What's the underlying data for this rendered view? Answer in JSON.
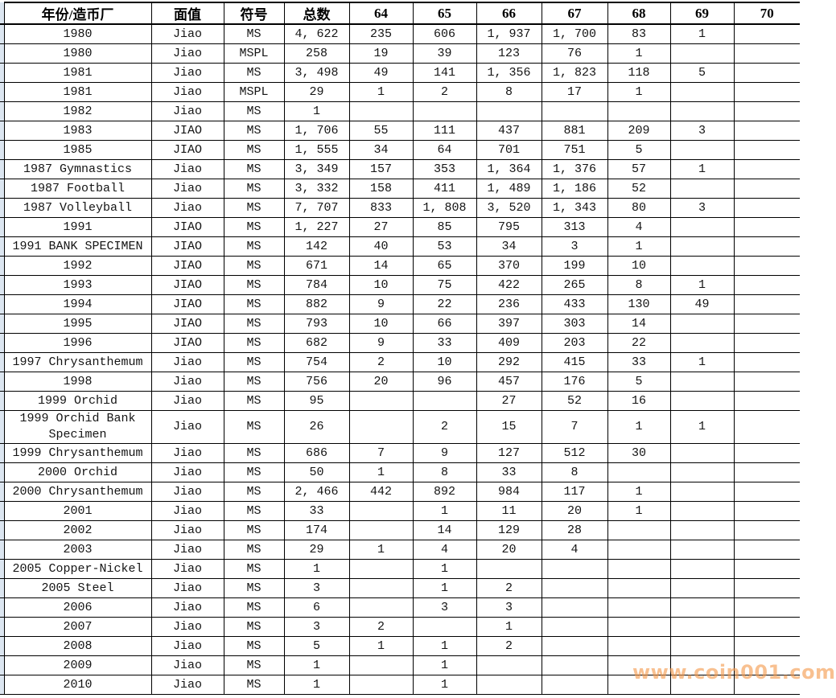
{
  "table": {
    "columns": [
      {
        "key": "name",
        "label": "年份/造币厂"
      },
      {
        "key": "denom",
        "label": "面值"
      },
      {
        "key": "symbol",
        "label": "符号"
      },
      {
        "key": "total",
        "label": "总数"
      },
      {
        "key": "g64",
        "label": "64"
      },
      {
        "key": "g65",
        "label": "65"
      },
      {
        "key": "g66",
        "label": "66"
      },
      {
        "key": "g67",
        "label": "67"
      },
      {
        "key": "g68",
        "label": "68"
      },
      {
        "key": "g69",
        "label": "69"
      },
      {
        "key": "g70",
        "label": "70"
      }
    ],
    "rows": [
      {
        "name": "1980",
        "denom": "Jiao",
        "symbol": "MS",
        "total": "4, 622",
        "g64": "235",
        "g65": "606",
        "g66": "1, 937",
        "g67": "1, 700",
        "g68": "83",
        "g69": "1",
        "g70": ""
      },
      {
        "name": "1980",
        "denom": "Jiao",
        "symbol": "MSPL",
        "total": "258",
        "g64": "19",
        "g65": "39",
        "g66": "123",
        "g67": "76",
        "g68": "1",
        "g69": "",
        "g70": ""
      },
      {
        "name": "1981",
        "denom": "Jiao",
        "symbol": "MS",
        "total": "3, 498",
        "g64": "49",
        "g65": "141",
        "g66": "1, 356",
        "g67": "1, 823",
        "g68": "118",
        "g69": "5",
        "g70": ""
      },
      {
        "name": "1981",
        "denom": "Jiao",
        "symbol": "MSPL",
        "total": "29",
        "g64": "1",
        "g65": "2",
        "g66": "8",
        "g67": "17",
        "g68": "1",
        "g69": "",
        "g70": ""
      },
      {
        "name": "1982",
        "denom": "Jiao",
        "symbol": "MS",
        "total": "1",
        "g64": "",
        "g65": "",
        "g66": "",
        "g67": "",
        "g68": "",
        "g69": "",
        "g70": ""
      },
      {
        "name": "1983",
        "denom": "JIAO",
        "symbol": "MS",
        "total": "1, 706",
        "g64": "55",
        "g65": "111",
        "g66": "437",
        "g67": "881",
        "g68": "209",
        "g69": "3",
        "g70": ""
      },
      {
        "name": "1985",
        "denom": "JIAO",
        "symbol": "MS",
        "total": "1, 555",
        "g64": "34",
        "g65": "64",
        "g66": "701",
        "g67": "751",
        "g68": "5",
        "g69": "",
        "g70": ""
      },
      {
        "name": "1987 Gymnastics",
        "denom": "Jiao",
        "symbol": "MS",
        "total": "3, 349",
        "g64": "157",
        "g65": "353",
        "g66": "1, 364",
        "g67": "1, 376",
        "g68": "57",
        "g69": "1",
        "g70": ""
      },
      {
        "name": "1987 Football",
        "denom": "Jiao",
        "symbol": "MS",
        "total": "3, 332",
        "g64": "158",
        "g65": "411",
        "g66": "1, 489",
        "g67": "1, 186",
        "g68": "52",
        "g69": "",
        "g70": ""
      },
      {
        "name": "1987 Volleyball",
        "denom": "Jiao",
        "symbol": "MS",
        "total": "7, 707",
        "g64": "833",
        "g65": "1, 808",
        "g66": "3, 520",
        "g67": "1, 343",
        "g68": "80",
        "g69": "3",
        "g70": ""
      },
      {
        "name": "1991",
        "denom": "JIAO",
        "symbol": "MS",
        "total": "1, 227",
        "g64": "27",
        "g65": "85",
        "g66": "795",
        "g67": "313",
        "g68": "4",
        "g69": "",
        "g70": ""
      },
      {
        "name": "1991 BANK SPECIMEN",
        "denom": "JIAO",
        "symbol": "MS",
        "total": "142",
        "g64": "40",
        "g65": "53",
        "g66": "34",
        "g67": "3",
        "g68": "1",
        "g69": "",
        "g70": ""
      },
      {
        "name": "1992",
        "denom": "JIAO",
        "symbol": "MS",
        "total": "671",
        "g64": "14",
        "g65": "65",
        "g66": "370",
        "g67": "199",
        "g68": "10",
        "g69": "",
        "g70": ""
      },
      {
        "name": "1993",
        "denom": "JIAO",
        "symbol": "MS",
        "total": "784",
        "g64": "10",
        "g65": "75",
        "g66": "422",
        "g67": "265",
        "g68": "8",
        "g69": "1",
        "g70": ""
      },
      {
        "name": "1994",
        "denom": "JIAO",
        "symbol": "MS",
        "total": "882",
        "g64": "9",
        "g65": "22",
        "g66": "236",
        "g67": "433",
        "g68": "130",
        "g69": "49",
        "g70": ""
      },
      {
        "name": "1995",
        "denom": "JIAO",
        "symbol": "MS",
        "total": "793",
        "g64": "10",
        "g65": "66",
        "g66": "397",
        "g67": "303",
        "g68": "14",
        "g69": "",
        "g70": ""
      },
      {
        "name": "1996",
        "denom": "JIAO",
        "symbol": "MS",
        "total": "682",
        "g64": "9",
        "g65": "33",
        "g66": "409",
        "g67": "203",
        "g68": "22",
        "g69": "",
        "g70": ""
      },
      {
        "name": "1997 Chrysanthemum",
        "denom": "Jiao",
        "symbol": "MS",
        "total": "754",
        "g64": "2",
        "g65": "10",
        "g66": "292",
        "g67": "415",
        "g68": "33",
        "g69": "1",
        "g70": ""
      },
      {
        "name": "1998",
        "denom": "Jiao",
        "symbol": "MS",
        "total": "756",
        "g64": "20",
        "g65": "96",
        "g66": "457",
        "g67": "176",
        "g68": "5",
        "g69": "",
        "g70": ""
      },
      {
        "name": "1999 Orchid",
        "denom": "Jiao",
        "symbol": "MS",
        "total": "95",
        "g64": "",
        "g65": "",
        "g66": "27",
        "g67": "52",
        "g68": "16",
        "g69": "",
        "g70": ""
      },
      {
        "name": "1999 Orchid Bank Specimen",
        "denom": "Jiao",
        "symbol": "MS",
        "total": "26",
        "g64": "",
        "g65": "2",
        "g66": "15",
        "g67": "7",
        "g68": "1",
        "g69": "1",
        "g70": ""
      },
      {
        "name": "1999 Chrysanthemum",
        "denom": "Jiao",
        "symbol": "MS",
        "total": "686",
        "g64": "7",
        "g65": "9",
        "g66": "127",
        "g67": "512",
        "g68": "30",
        "g69": "",
        "g70": ""
      },
      {
        "name": "2000 Orchid",
        "denom": "Jiao",
        "symbol": "MS",
        "total": "50",
        "g64": "1",
        "g65": "8",
        "g66": "33",
        "g67": "8",
        "g68": "",
        "g69": "",
        "g70": ""
      },
      {
        "name": "2000 Chrysanthemum",
        "denom": "Jiao",
        "symbol": "MS",
        "total": "2, 466",
        "g64": "442",
        "g65": "892",
        "g66": "984",
        "g67": "117",
        "g68": "1",
        "g69": "",
        "g70": ""
      },
      {
        "name": "2001",
        "denom": "Jiao",
        "symbol": "MS",
        "total": "33",
        "g64": "",
        "g65": "1",
        "g66": "11",
        "g67": "20",
        "g68": "1",
        "g69": "",
        "g70": ""
      },
      {
        "name": "2002",
        "denom": "Jiao",
        "symbol": "MS",
        "total": "174",
        "g64": "",
        "g65": "14",
        "g66": "129",
        "g67": "28",
        "g68": "",
        "g69": "",
        "g70": ""
      },
      {
        "name": "2003",
        "denom": "Jiao",
        "symbol": "MS",
        "total": "29",
        "g64": "1",
        "g65": "4",
        "g66": "20",
        "g67": "4",
        "g68": "",
        "g69": "",
        "g70": ""
      },
      {
        "name": "2005 Copper-Nickel",
        "denom": "Jiao",
        "symbol": "MS",
        "total": "1",
        "g64": "",
        "g65": "1",
        "g66": "",
        "g67": "",
        "g68": "",
        "g69": "",
        "g70": ""
      },
      {
        "name": "2005 Steel",
        "denom": "Jiao",
        "symbol": "MS",
        "total": "3",
        "g64": "",
        "g65": "1",
        "g66": "2",
        "g67": "",
        "g68": "",
        "g69": "",
        "g70": ""
      },
      {
        "name": "2006",
        "denom": "Jiao",
        "symbol": "MS",
        "total": "6",
        "g64": "",
        "g65": "3",
        "g66": "3",
        "g67": "",
        "g68": "",
        "g69": "",
        "g70": ""
      },
      {
        "name": "2007",
        "denom": "Jiao",
        "symbol": "MS",
        "total": "3",
        "g64": "2",
        "g65": "",
        "g66": "1",
        "g67": "",
        "g68": "",
        "g69": "",
        "g70": ""
      },
      {
        "name": "2008",
        "denom": "Jiao",
        "symbol": "MS",
        "total": "5",
        "g64": "1",
        "g65": "1",
        "g66": "2",
        "g67": "",
        "g68": "",
        "g69": "",
        "g70": ""
      },
      {
        "name": "2009",
        "denom": "Jiao",
        "symbol": "MS",
        "total": "1",
        "g64": "",
        "g65": "1",
        "g66": "",
        "g67": "",
        "g68": "",
        "g69": "",
        "g70": ""
      },
      {
        "name": "2010",
        "denom": "Jiao",
        "symbol": "MS",
        "total": "1",
        "g64": "",
        "g65": "1",
        "g66": "",
        "g67": "",
        "g68": "",
        "g69": "",
        "g70": ""
      }
    ]
  },
  "watermark": {
    "text": "www.coin001.com",
    "color": "#F59A4D"
  },
  "colors": {
    "grid": "#000000",
    "gutter_fill": "#DCE6F1",
    "background": "#FFFFFF"
  }
}
